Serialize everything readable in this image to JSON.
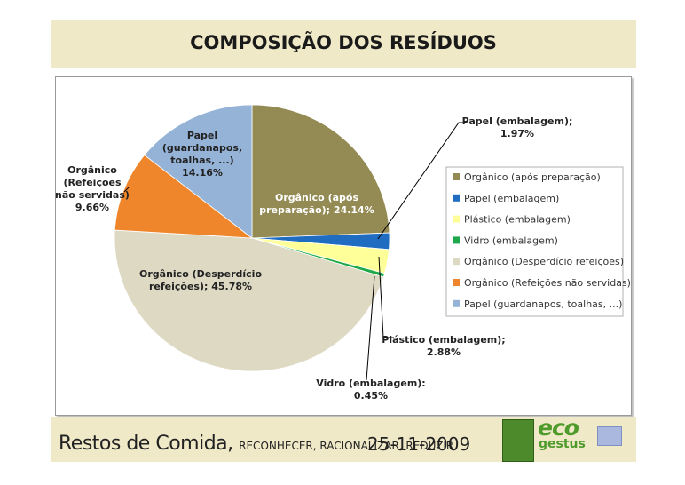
{
  "header": {
    "title": "COMPOSIÇÃO DOS RESÍDUOS"
  },
  "footer": {
    "left_main": "Restos de Comida,",
    "left_small": "RECONHECER, RACIONALIZAR, REDUZIR",
    "date": "25-11-2009",
    "logo_eco": "eco",
    "logo_gestus": "gestus"
  },
  "chart_data": {
    "type": "pie",
    "title": "",
    "legend_position": "right",
    "slices": [
      {
        "name": "Orgânico (após preparação)",
        "value": 24.14,
        "color": "#948a54",
        "label_lines": [
          "Orgânico (após",
          "preparação); 24.14%"
        ]
      },
      {
        "name": "Papel (embalagem)",
        "value": 1.97,
        "color": "#1f6cc1",
        "label_lines": [
          "Papel (embalagem);",
          "1.97%"
        ]
      },
      {
        "name": "Plástico (embalagem)",
        "value": 2.88,
        "color": "#ffff99",
        "label_lines": [
          "Plástico (embalagem);",
          "2.88%"
        ]
      },
      {
        "name": "Vidro (embalagem)",
        "value": 0.45,
        "color": "#1ea84b",
        "label_lines": [
          "Vidro (embalagem):",
          "0.45%"
        ]
      },
      {
        "name": "Orgânico (Desperdício refeições)",
        "value": 45.78,
        "color": "#ddd9c3",
        "label_lines": [
          "Orgânico (Desperdício",
          "refeições); 45.78%"
        ]
      },
      {
        "name": "Orgânico (Refeições não servidas)",
        "value": 9.66,
        "color": "#f0862b",
        "label_lines": [
          "Orgânico",
          "(Refeições",
          "não servidas)",
          "9.66%"
        ]
      },
      {
        "name": "Papel (guardanapos, toalhas, ...)",
        "value": 14.16,
        "color": "#95b3d7",
        "label_lines": [
          "Papel",
          "(guardanapos,",
          "toalhas, ...)",
          "14.16%"
        ]
      }
    ]
  }
}
